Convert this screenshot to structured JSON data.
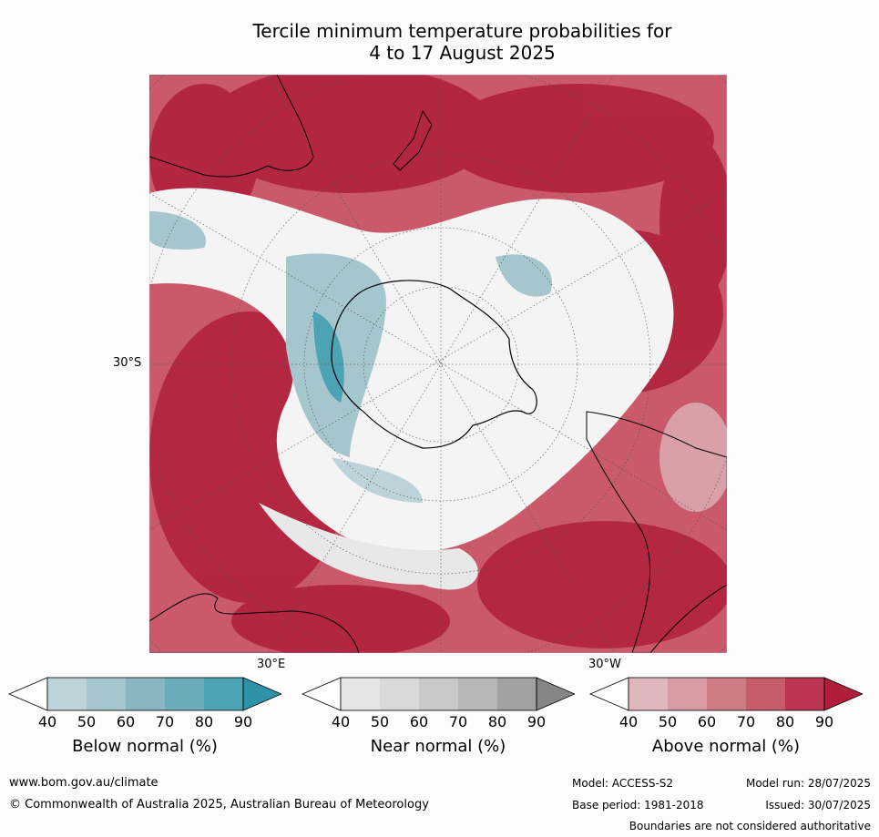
{
  "title_line1": "Tercile minimum temperature probabilities for",
  "title_line2": "4 to 17 August 2025",
  "axis_labels": {
    "lat": "30°S",
    "lon_e": "30°E",
    "lon_w": "30°W"
  },
  "colorbars": [
    {
      "label": "Below normal (%)",
      "ticks": [
        "40",
        "50",
        "60",
        "70",
        "80",
        "90"
      ],
      "colors": [
        "#bcd3da",
        "#a5c6cd",
        "#8ab6c2",
        "#6aadb9",
        "#4ba3b3",
        "#2f93a8"
      ]
    },
    {
      "label": "Near normal (%)",
      "ticks": [
        "40",
        "50",
        "60",
        "70",
        "80",
        "90"
      ],
      "colors": [
        "#e6e6e6",
        "#d9d9d9",
        "#c9c9c9",
        "#b7b7b7",
        "#a1a1a1",
        "#858585"
      ]
    },
    {
      "label": "Above normal (%)",
      "ticks": [
        "40",
        "50",
        "60",
        "70",
        "80",
        "90"
      ],
      "colors": [
        "#e0b7bc",
        "#d79ba3",
        "#cf7b86",
        "#c75d6c",
        "#bc3553",
        "#b01e3c"
      ]
    }
  ],
  "footer": {
    "website": "www.bom.gov.au/climate",
    "copyright": "© Commonwealth of Australia 2025, Australian Bureau of Meteorology",
    "model": "Model: ACCESS-S2",
    "model_run": "Model run: 28/07/2025",
    "base_period": "Base period: 1981-2018",
    "issued": "Issued: 30/07/2025",
    "disclaimer": "Boundaries are not considered authoritative"
  }
}
